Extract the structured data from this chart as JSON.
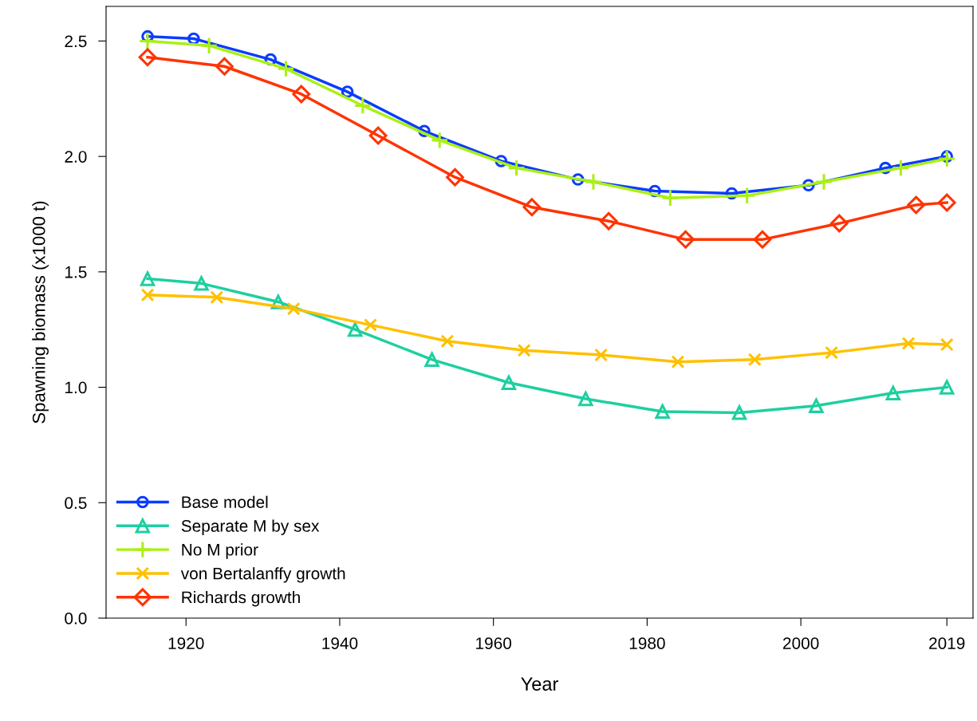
{
  "chart_data": {
    "type": "line",
    "xlabel": "Year",
    "ylabel": "Spawning biomass (x1000 t)",
    "xlim": [
      1909.6,
      2022.4
    ],
    "ylim": [
      0,
      2.65
    ],
    "xticks": [
      1920,
      1940,
      1960,
      1980,
      2000,
      2019
    ],
    "yticks": [
      {
        "value": 0,
        "label": "0.0"
      },
      {
        "value": 0.5,
        "label": "0.5"
      },
      {
        "value": 1,
        "label": "1.0"
      },
      {
        "value": 1.5,
        "label": "1.5"
      },
      {
        "value": 2,
        "label": "2.0"
      },
      {
        "value": 2.5,
        "label": "2.5"
      }
    ],
    "grid": false,
    "legend": "bottom left",
    "line_style": "solid",
    "series": [
      {
        "name": "Base model",
        "color": "#0a3cff",
        "marker": "circle",
        "x": [
          1915,
          1921,
          1931,
          1941,
          1951,
          1961,
          1971,
          1981,
          1991,
          2001,
          2011,
          2019
        ],
        "values": [
          2.52,
          2.51,
          2.42,
          2.28,
          2.11,
          1.98,
          1.9,
          1.85,
          1.84,
          1.875,
          1.95,
          2.0
        ]
      },
      {
        "name": "Separate M by sex",
        "color": "#1ecfa0",
        "marker": "triangle",
        "x": [
          1915,
          1922,
          1932,
          1942,
          1952,
          1962,
          1972,
          1982,
          1992,
          2002,
          2012,
          2019
        ],
        "values": [
          1.47,
          1.45,
          1.37,
          1.25,
          1.12,
          1.02,
          0.95,
          0.895,
          0.89,
          0.92,
          0.975,
          1.0
        ]
      },
      {
        "name": "No M prior",
        "color": "#aaf014",
        "marker": "cross",
        "x": [
          1915,
          1923,
          1933,
          1943,
          1953,
          1963,
          1973,
          1983,
          1993,
          2003,
          2013,
          2019
        ],
        "values": [
          2.5,
          2.48,
          2.38,
          2.22,
          2.07,
          1.95,
          1.89,
          1.82,
          1.83,
          1.89,
          1.95,
          1.99
        ]
      },
      {
        "name": "von Bertalanffy growth",
        "color": "#ffc000",
        "marker": "x",
        "x": [
          1915,
          1924,
          1934,
          1944,
          1954,
          1964,
          1974,
          1984,
          1994,
          2004,
          2014,
          2019
        ],
        "values": [
          1.4,
          1.39,
          1.34,
          1.27,
          1.2,
          1.16,
          1.14,
          1.11,
          1.12,
          1.15,
          1.19,
          1.185
        ]
      },
      {
        "name": "Richards growth",
        "color": "#ff3300",
        "marker": "diamond",
        "x": [
          1915,
          1925,
          1935,
          1945,
          1955,
          1965,
          1975,
          1985,
          1995,
          2005,
          2015,
          2019
        ],
        "values": [
          2.43,
          2.39,
          2.27,
          2.09,
          1.91,
          1.78,
          1.72,
          1.64,
          1.64,
          1.71,
          1.79,
          1.8
        ]
      }
    ]
  }
}
